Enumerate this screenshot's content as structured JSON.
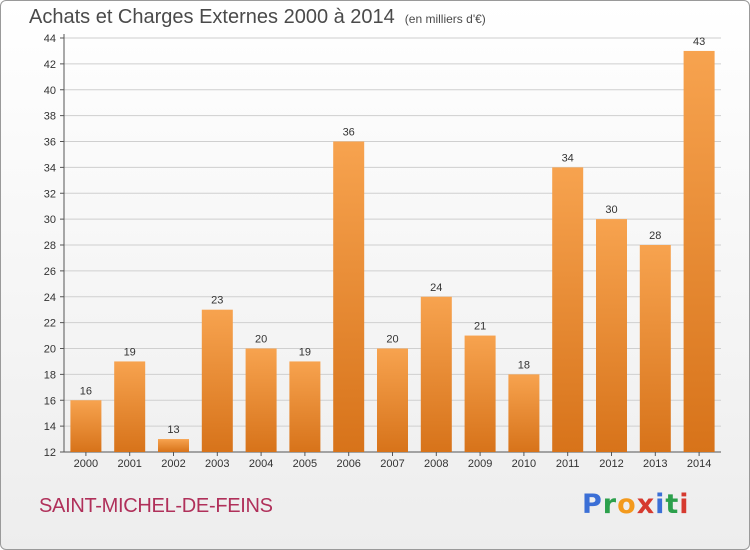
{
  "title": "Achats et Charges Externes 2000 à 2014",
  "unit": "(en milliers d'€)",
  "commune": "SAINT-MICHEL-DE-FEINS",
  "logo": "Proxiti",
  "colors": {
    "bar_top": "#f7a34f",
    "bar_bottom": "#d7731a",
    "commune": "#b0305a"
  },
  "chart_data": {
    "type": "bar",
    "title": "Achats et Charges Externes 2000 à 2014",
    "subtitle": "(en milliers d'€)",
    "xlabel": "",
    "ylabel": "",
    "categories": [
      "2000",
      "2001",
      "2002",
      "2003",
      "2004",
      "2005",
      "2006",
      "2007",
      "2008",
      "2009",
      "2010",
      "2011",
      "2012",
      "2013",
      "2014"
    ],
    "values": [
      16,
      19,
      13,
      23,
      20,
      19,
      36,
      20,
      24,
      21,
      18,
      34,
      30,
      28,
      43
    ],
    "ylim": [
      12,
      44
    ],
    "yticks": [
      12,
      14,
      16,
      18,
      20,
      22,
      24,
      26,
      28,
      30,
      32,
      34,
      36,
      38,
      40,
      42,
      44
    ],
    "grid": true
  }
}
